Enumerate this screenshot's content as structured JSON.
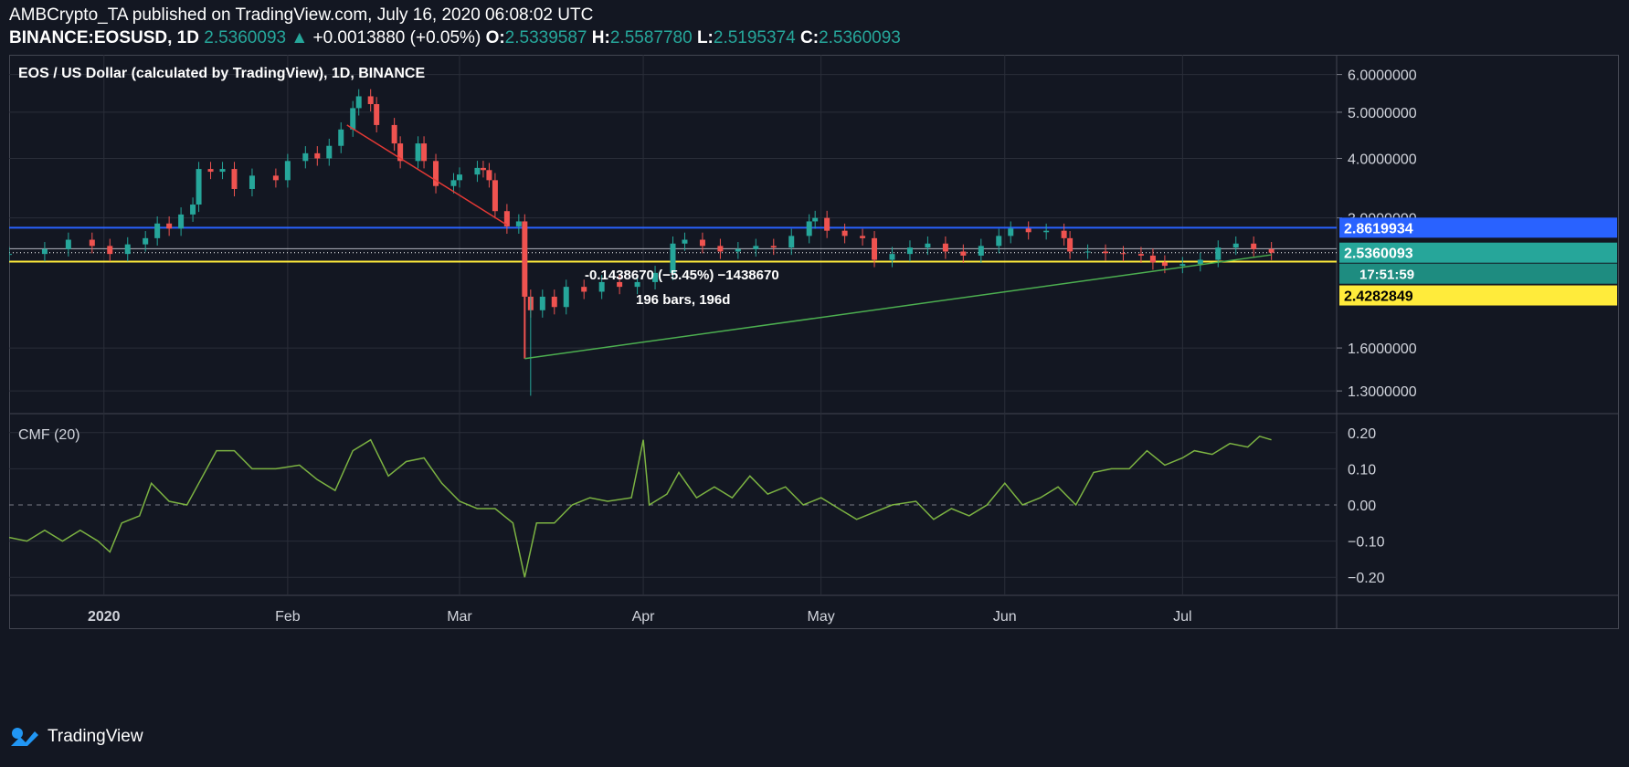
{
  "header": {
    "author_line": "AMBCrypto_TA published on TradingView.com, July 16, 2020 06:08:02 UTC",
    "symbol": "BINANCE:EOSUSD, 1D",
    "last": "2.5360093",
    "change": "+0.0013880 (+0.05%)",
    "o_label": "O:",
    "o_value": "2.5339587",
    "h_label": "H:",
    "h_value": "2.5587780",
    "l_label": "L:",
    "l_value": "2.5195374",
    "c_label": "C:",
    "c_value": "2.5360093"
  },
  "footer": {
    "brand": "TradingView"
  },
  "colors": {
    "background": "#131722",
    "up": "#26a69a",
    "down": "#ef5350",
    "grid": "#2a2e39",
    "blue_line": "#2962ff",
    "yellow_line": "#ffeb3b",
    "trend_green": "#4caf50",
    "trend_red": "#e53935",
    "cmf": "#7cb342"
  },
  "chart_data": [
    {
      "type": "candlestick",
      "title": "EOS / US Dollar (calculated by TradingView), 1D, BINANCE",
      "y_scale": "log",
      "ylim": [
        1.17,
        6.6
      ],
      "y_ticks": [
        6.0,
        5.0,
        4.0,
        3.0,
        1.6,
        1.3
      ],
      "y_tick_labels": [
        "6.0000000",
        "5.0000000",
        "4.0000000",
        "3.0000000",
        "1.6000000",
        "1.3000000"
      ],
      "x_ticks": [
        "2020",
        "Feb",
        "Mar",
        "Apr",
        "May",
        "Jun",
        "Jul"
      ],
      "x_tick_dates": [
        "2020-01-01",
        "2020-02-01",
        "2020-03-01",
        "2020-04-01",
        "2020-05-01",
        "2020-06-01",
        "2020-07-01"
      ],
      "x_range": [
        "2019-12-16",
        "2020-07-27"
      ],
      "closes": [
        {
          "date": "2019-12-16",
          "close": 2.52
        },
        {
          "date": "2019-12-22",
          "close": 2.58
        },
        {
          "date": "2019-12-26",
          "close": 2.7
        },
        {
          "date": "2019-12-30",
          "close": 2.62
        },
        {
          "date": "2020-01-02",
          "close": 2.52
        },
        {
          "date": "2020-01-05",
          "close": 2.64
        },
        {
          "date": "2020-01-08",
          "close": 2.72
        },
        {
          "date": "2020-01-10",
          "close": 2.92
        },
        {
          "date": "2020-01-12",
          "close": 2.85
        },
        {
          "date": "2020-01-14",
          "close": 3.05
        },
        {
          "date": "2020-01-16",
          "close": 3.2
        },
        {
          "date": "2020-01-17",
          "close": 3.8
        },
        {
          "date": "2020-01-19",
          "close": 3.75
        },
        {
          "date": "2020-01-21",
          "close": 3.8
        },
        {
          "date": "2020-01-23",
          "close": 3.45
        },
        {
          "date": "2020-01-26",
          "close": 3.68
        },
        {
          "date": "2020-01-30",
          "close": 3.6
        },
        {
          "date": "2020-02-01",
          "close": 3.95
        },
        {
          "date": "2020-02-04",
          "close": 4.1
        },
        {
          "date": "2020-02-06",
          "close": 4.0
        },
        {
          "date": "2020-02-08",
          "close": 4.25
        },
        {
          "date": "2020-02-10",
          "close": 4.6
        },
        {
          "date": "2020-02-12",
          "close": 5.1
        },
        {
          "date": "2020-02-13",
          "close": 5.4
        },
        {
          "date": "2020-02-15",
          "close": 5.2
        },
        {
          "date": "2020-02-16",
          "close": 4.7
        },
        {
          "date": "2020-02-19",
          "close": 4.3
        },
        {
          "date": "2020-02-20",
          "close": 3.95
        },
        {
          "date": "2020-02-23",
          "close": 4.3
        },
        {
          "date": "2020-02-24",
          "close": 3.95
        },
        {
          "date": "2020-02-26",
          "close": 3.5
        },
        {
          "date": "2020-02-29",
          "close": 3.6
        },
        {
          "date": "2020-03-01",
          "close": 3.7
        },
        {
          "date": "2020-03-04",
          "close": 3.82
        },
        {
          "date": "2020-03-05",
          "close": 3.78
        },
        {
          "date": "2020-03-06",
          "close": 3.6
        },
        {
          "date": "2020-03-07",
          "close": 3.1
        },
        {
          "date": "2020-03-09",
          "close": 2.88
        },
        {
          "date": "2020-03-11",
          "close": 2.95
        },
        {
          "date": "2020-03-12",
          "close": 2.05
        },
        {
          "date": "2020-03-13",
          "close": 1.92
        },
        {
          "date": "2020-03-15",
          "close": 2.05
        },
        {
          "date": "2020-03-17",
          "close": 1.95
        },
        {
          "date": "2020-03-19",
          "close": 2.15
        },
        {
          "date": "2020-03-22",
          "close": 2.1
        },
        {
          "date": "2020-03-25",
          "close": 2.2
        },
        {
          "date": "2020-03-28",
          "close": 2.15
        },
        {
          "date": "2020-03-31",
          "close": 2.2
        },
        {
          "date": "2020-04-03",
          "close": 2.3
        },
        {
          "date": "2020-04-06",
          "close": 2.65
        },
        {
          "date": "2020-04-08",
          "close": 2.7
        },
        {
          "date": "2020-04-11",
          "close": 2.62
        },
        {
          "date": "2020-04-14",
          "close": 2.55
        },
        {
          "date": "2020-04-17",
          "close": 2.58
        },
        {
          "date": "2020-04-20",
          "close": 2.62
        },
        {
          "date": "2020-04-23",
          "close": 2.6
        },
        {
          "date": "2020-04-26",
          "close": 2.75
        },
        {
          "date": "2020-04-29",
          "close": 2.95
        },
        {
          "date": "2020-04-30",
          "close": 3.0
        },
        {
          "date": "2020-05-02",
          "close": 2.82
        },
        {
          "date": "2020-05-05",
          "close": 2.75
        },
        {
          "date": "2020-05-08",
          "close": 2.72
        },
        {
          "date": "2020-05-10",
          "close": 2.45
        },
        {
          "date": "2020-05-13",
          "close": 2.52
        },
        {
          "date": "2020-05-16",
          "close": 2.6
        },
        {
          "date": "2020-05-19",
          "close": 2.65
        },
        {
          "date": "2020-05-22",
          "close": 2.55
        },
        {
          "date": "2020-05-25",
          "close": 2.5
        },
        {
          "date": "2020-05-28",
          "close": 2.62
        },
        {
          "date": "2020-05-31",
          "close": 2.75
        },
        {
          "date": "2020-06-02",
          "close": 2.85
        },
        {
          "date": "2020-06-05",
          "close": 2.8
        },
        {
          "date": "2020-06-08",
          "close": 2.82
        },
        {
          "date": "2020-06-11",
          "close": 2.72
        },
        {
          "date": "2020-06-12",
          "close": 2.55
        },
        {
          "date": "2020-06-15",
          "close": 2.55
        },
        {
          "date": "2020-06-18",
          "close": 2.53
        },
        {
          "date": "2020-06-21",
          "close": 2.52
        },
        {
          "date": "2020-06-24",
          "close": 2.5
        },
        {
          "date": "2020-06-26",
          "close": 2.42
        },
        {
          "date": "2020-06-28",
          "close": 2.38
        },
        {
          "date": "2020-07-01",
          "close": 2.4
        },
        {
          "date": "2020-07-04",
          "close": 2.45
        },
        {
          "date": "2020-07-07",
          "close": 2.6
        },
        {
          "date": "2020-07-10",
          "close": 2.65
        },
        {
          "date": "2020-07-13",
          "close": 2.58
        },
        {
          "date": "2020-07-16",
          "close": 2.5360093
        }
      ],
      "lines": [
        {
          "name": "resistance",
          "value": 2.8619934,
          "label": "2.8619934",
          "color": "#2962ff"
        },
        {
          "name": "support",
          "value": 2.4282849,
          "label": "2.4282849",
          "color": "#ffeb3b"
        },
        {
          "name": "last-price",
          "value": 2.5360093,
          "label": "2.5360093",
          "color": "#26a69a"
        }
      ],
      "countdown": "17:51:59",
      "trendlines": [
        {
          "name": "downtrend",
          "from": {
            "date": "2020-02-11",
            "price": 4.7
          },
          "to": {
            "date": "2020-03-09",
            "price": 2.9
          },
          "color": "#e53935"
        },
        {
          "name": "uptrend",
          "from": {
            "date": "2020-03-12",
            "price": 1.52
          },
          "to": {
            "date": "2020-07-16",
            "price": 2.51
          },
          "color": "#4caf50"
        }
      ],
      "measure": {
        "line1": "-0.1438670 (−5.45%) −1438670",
        "line2": "196 bars, 196d"
      }
    },
    {
      "type": "line",
      "title": "CMF (20)",
      "ylim": [
        -0.25,
        0.25
      ],
      "y_ticks": [
        0.2,
        0.1,
        0.0,
        -0.1,
        -0.2
      ],
      "y_tick_labels": [
        "0.20",
        "0.10",
        "0.00",
        "−0.10",
        "−0.20"
      ],
      "series": [
        {
          "values": [
            {
              "date": "2019-12-16",
              "value": -0.09
            },
            {
              "date": "2019-12-19",
              "value": -0.1
            },
            {
              "date": "2019-12-22",
              "value": -0.07
            },
            {
              "date": "2019-12-25",
              "value": -0.1
            },
            {
              "date": "2019-12-28",
              "value": -0.07
            },
            {
              "date": "2019-12-31",
              "value": -0.1
            },
            {
              "date": "2020-01-02",
              "value": -0.13
            },
            {
              "date": "2020-01-04",
              "value": -0.05
            },
            {
              "date": "2020-01-07",
              "value": -0.03
            },
            {
              "date": "2020-01-09",
              "value": 0.06
            },
            {
              "date": "2020-01-12",
              "value": 0.01
            },
            {
              "date": "2020-01-15",
              "value": 0.0
            },
            {
              "date": "2020-01-17",
              "value": 0.06
            },
            {
              "date": "2020-01-20",
              "value": 0.15
            },
            {
              "date": "2020-01-23",
              "value": 0.15
            },
            {
              "date": "2020-01-26",
              "value": 0.1
            },
            {
              "date": "2020-01-30",
              "value": 0.1
            },
            {
              "date": "2020-02-03",
              "value": 0.11
            },
            {
              "date": "2020-02-06",
              "value": 0.07
            },
            {
              "date": "2020-02-09",
              "value": 0.04
            },
            {
              "date": "2020-02-12",
              "value": 0.15
            },
            {
              "date": "2020-02-15",
              "value": 0.18
            },
            {
              "date": "2020-02-18",
              "value": 0.08
            },
            {
              "date": "2020-02-21",
              "value": 0.12
            },
            {
              "date": "2020-02-24",
              "value": 0.13
            },
            {
              "date": "2020-02-27",
              "value": 0.06
            },
            {
              "date": "2020-03-01",
              "value": 0.01
            },
            {
              "date": "2020-03-04",
              "value": -0.01
            },
            {
              "date": "2020-03-07",
              "value": -0.01
            },
            {
              "date": "2020-03-10",
              "value": -0.05
            },
            {
              "date": "2020-03-12",
              "value": -0.2
            },
            {
              "date": "2020-03-14",
              "value": -0.05
            },
            {
              "date": "2020-03-17",
              "value": -0.05
            },
            {
              "date": "2020-03-20",
              "value": 0.0
            },
            {
              "date": "2020-03-23",
              "value": 0.02
            },
            {
              "date": "2020-03-26",
              "value": 0.01
            },
            {
              "date": "2020-03-30",
              "value": 0.02
            },
            {
              "date": "2020-04-01",
              "value": 0.18
            },
            {
              "date": "2020-04-02",
              "value": 0.0
            },
            {
              "date": "2020-04-05",
              "value": 0.03
            },
            {
              "date": "2020-04-07",
              "value": 0.09
            },
            {
              "date": "2020-04-10",
              "value": 0.02
            },
            {
              "date": "2020-04-13",
              "value": 0.05
            },
            {
              "date": "2020-04-16",
              "value": 0.02
            },
            {
              "date": "2020-04-19",
              "value": 0.08
            },
            {
              "date": "2020-04-22",
              "value": 0.03
            },
            {
              "date": "2020-04-25",
              "value": 0.05
            },
            {
              "date": "2020-04-28",
              "value": 0.0
            },
            {
              "date": "2020-05-01",
              "value": 0.02
            },
            {
              "date": "2020-05-04",
              "value": -0.01
            },
            {
              "date": "2020-05-07",
              "value": -0.04
            },
            {
              "date": "2020-05-10",
              "value": -0.02
            },
            {
              "date": "2020-05-13",
              "value": 0.0
            },
            {
              "date": "2020-05-17",
              "value": 0.01
            },
            {
              "date": "2020-05-20",
              "value": -0.04
            },
            {
              "date": "2020-05-23",
              "value": -0.01
            },
            {
              "date": "2020-05-26",
              "value": -0.03
            },
            {
              "date": "2020-05-29",
              "value": 0.0
            },
            {
              "date": "2020-06-01",
              "value": 0.06
            },
            {
              "date": "2020-06-04",
              "value": 0.0
            },
            {
              "date": "2020-06-07",
              "value": 0.02
            },
            {
              "date": "2020-06-10",
              "value": 0.05
            },
            {
              "date": "2020-06-13",
              "value": 0.0
            },
            {
              "date": "2020-06-16",
              "value": 0.09
            },
            {
              "date": "2020-06-19",
              "value": 0.1
            },
            {
              "date": "2020-06-22",
              "value": 0.1
            },
            {
              "date": "2020-06-25",
              "value": 0.15
            },
            {
              "date": "2020-06-28",
              "value": 0.11
            },
            {
              "date": "2020-07-01",
              "value": 0.13
            },
            {
              "date": "2020-07-03",
              "value": 0.15
            },
            {
              "date": "2020-07-06",
              "value": 0.14
            },
            {
              "date": "2020-07-09",
              "value": 0.17
            },
            {
              "date": "2020-07-12",
              "value": 0.16
            },
            {
              "date": "2020-07-14",
              "value": 0.19
            },
            {
              "date": "2020-07-16",
              "value": 0.18
            }
          ]
        }
      ]
    }
  ]
}
